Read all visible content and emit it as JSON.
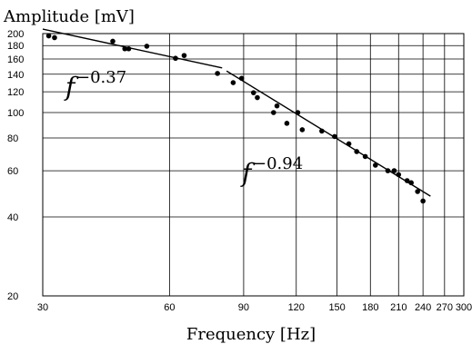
{
  "chart_data": {
    "type": "scatter",
    "title": "",
    "xlabel": "Frequency [Hz]",
    "ylabel": "Amplitude [mV]",
    "x_scale": "log",
    "y_scale": "log",
    "xlim": [
      30,
      300
    ],
    "ylim": [
      20,
      200
    ],
    "grid": true,
    "x_ticks": [
      30,
      60,
      90,
      120,
      150,
      180,
      210,
      240,
      270,
      300
    ],
    "y_ticks": [
      20,
      40,
      60,
      80,
      100,
      120,
      140,
      160,
      180,
      200
    ],
    "series": [
      {
        "x": [
          31,
          32,
          44,
          47,
          48,
          53,
          62,
          65,
          78,
          85,
          89,
          95,
          97,
          106,
          108,
          114,
          121,
          124,
          138,
          148,
          160,
          167,
          175,
          185,
          198,
          205,
          210,
          220,
          225,
          233,
          240
        ],
        "y": [
          196,
          193,
          187,
          175,
          175,
          179,
          161,
          165,
          141,
          130,
          135,
          119,
          114,
          100,
          106,
          91,
          100,
          86,
          85,
          81,
          76,
          71,
          68,
          63,
          60,
          60,
          58,
          55,
          54,
          50,
          46
        ]
      }
    ],
    "fit_lines": [
      {
        "label_base": "f",
        "exponent": "−0.37",
        "x_range": [
          30,
          80
        ],
        "y_range": [
          208,
          148
        ]
      },
      {
        "label_base": "f",
        "exponent": "−0.94",
        "x_range": [
          82,
          250
        ],
        "y_range": [
          144,
          48
        ]
      }
    ]
  }
}
